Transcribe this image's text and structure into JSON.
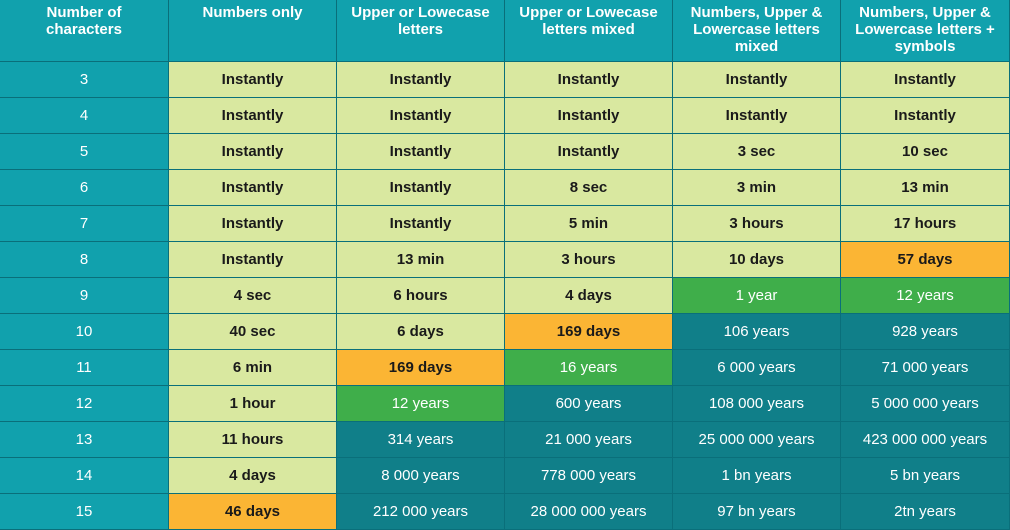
{
  "colors": {
    "header": "#11a1ad",
    "light": "#d9e8a0",
    "orange": "#fbb534",
    "green": "#3fae4a",
    "teal": "#107f89"
  },
  "chart_data": {
    "type": "table",
    "columns": [
      "Number of\ncharacters",
      "Numbers only",
      "Upper or Lowecase\nletters",
      "Upper or Lowecase\nletters mixed",
      "Numbers, Upper &\nLowercase letters\nmixed",
      "Numbers, Upper &\nLowercase letters +\nsymbols"
    ],
    "rows": [
      {
        "chars": "3",
        "cells": [
          {
            "v": "Instantly",
            "c": "light"
          },
          {
            "v": "Instantly",
            "c": "light"
          },
          {
            "v": "Instantly",
            "c": "light"
          },
          {
            "v": "Instantly",
            "c": "light"
          },
          {
            "v": "Instantly",
            "c": "light"
          }
        ]
      },
      {
        "chars": "4",
        "cells": [
          {
            "v": "Instantly",
            "c": "light"
          },
          {
            "v": "Instantly",
            "c": "light"
          },
          {
            "v": "Instantly",
            "c": "light"
          },
          {
            "v": "Instantly",
            "c": "light"
          },
          {
            "v": "Instantly",
            "c": "light"
          }
        ]
      },
      {
        "chars": "5",
        "cells": [
          {
            "v": "Instantly",
            "c": "light"
          },
          {
            "v": "Instantly",
            "c": "light"
          },
          {
            "v": "Instantly",
            "c": "light"
          },
          {
            "v": "3 sec",
            "c": "light"
          },
          {
            "v": "10 sec",
            "c": "light"
          }
        ]
      },
      {
        "chars": "6",
        "cells": [
          {
            "v": "Instantly",
            "c": "light"
          },
          {
            "v": "Instantly",
            "c": "light"
          },
          {
            "v": "8 sec",
            "c": "light"
          },
          {
            "v": "3 min",
            "c": "light"
          },
          {
            "v": "13 min",
            "c": "light"
          }
        ]
      },
      {
        "chars": "7",
        "cells": [
          {
            "v": "Instantly",
            "c": "light"
          },
          {
            "v": "Instantly",
            "c": "light"
          },
          {
            "v": "5 min",
            "c": "light"
          },
          {
            "v": "3 hours",
            "c": "light"
          },
          {
            "v": "17 hours",
            "c": "light"
          }
        ]
      },
      {
        "chars": "8",
        "cells": [
          {
            "v": "Instantly",
            "c": "light"
          },
          {
            "v": "13 min",
            "c": "light"
          },
          {
            "v": "3 hours",
            "c": "light"
          },
          {
            "v": "10 days",
            "c": "light"
          },
          {
            "v": "57 days",
            "c": "orange"
          }
        ]
      },
      {
        "chars": "9",
        "cells": [
          {
            "v": "4 sec",
            "c": "light"
          },
          {
            "v": "6 hours",
            "c": "light"
          },
          {
            "v": "4 days",
            "c": "light"
          },
          {
            "v": "1 year",
            "c": "green"
          },
          {
            "v": "12 years",
            "c": "green"
          }
        ]
      },
      {
        "chars": "10",
        "cells": [
          {
            "v": "40 sec",
            "c": "light"
          },
          {
            "v": "6 days",
            "c": "light"
          },
          {
            "v": "169 days",
            "c": "orange"
          },
          {
            "v": "106 years",
            "c": "teal"
          },
          {
            "v": "928 years",
            "c": "teal"
          }
        ]
      },
      {
        "chars": "11",
        "cells": [
          {
            "v": "6 min",
            "c": "light"
          },
          {
            "v": "169 days",
            "c": "orange"
          },
          {
            "v": "16 years",
            "c": "green"
          },
          {
            "v": "6 000 years",
            "c": "teal"
          },
          {
            "v": "71 000 years",
            "c": "teal"
          }
        ]
      },
      {
        "chars": "12",
        "cells": [
          {
            "v": "1 hour",
            "c": "light"
          },
          {
            "v": "12 years",
            "c": "green"
          },
          {
            "v": "600 years",
            "c": "teal"
          },
          {
            "v": "108 000 years",
            "c": "teal"
          },
          {
            "v": "5 000 000 years",
            "c": "teal"
          }
        ]
      },
      {
        "chars": "13",
        "cells": [
          {
            "v": "11 hours",
            "c": "light"
          },
          {
            "v": "314 years",
            "c": "teal"
          },
          {
            "v": "21 000 years",
            "c": "teal"
          },
          {
            "v": "25 000 000 years",
            "c": "teal"
          },
          {
            "v": "423 000 000 years",
            "c": "teal"
          }
        ]
      },
      {
        "chars": "14",
        "cells": [
          {
            "v": "4 days",
            "c": "light"
          },
          {
            "v": "8 000 years",
            "c": "teal"
          },
          {
            "v": "778 000 years",
            "c": "teal"
          },
          {
            "v": "1 bn years",
            "c": "teal"
          },
          {
            "v": "5 bn years",
            "c": "teal"
          }
        ]
      },
      {
        "chars": "15",
        "cells": [
          {
            "v": "46 days",
            "c": "orange"
          },
          {
            "v": "212 000 years",
            "c": "teal"
          },
          {
            "v": "28 000 000 years",
            "c": "teal"
          },
          {
            "v": "97 bn years",
            "c": "teal"
          },
          {
            "v": "2tn years",
            "c": "teal"
          }
        ]
      }
    ]
  }
}
